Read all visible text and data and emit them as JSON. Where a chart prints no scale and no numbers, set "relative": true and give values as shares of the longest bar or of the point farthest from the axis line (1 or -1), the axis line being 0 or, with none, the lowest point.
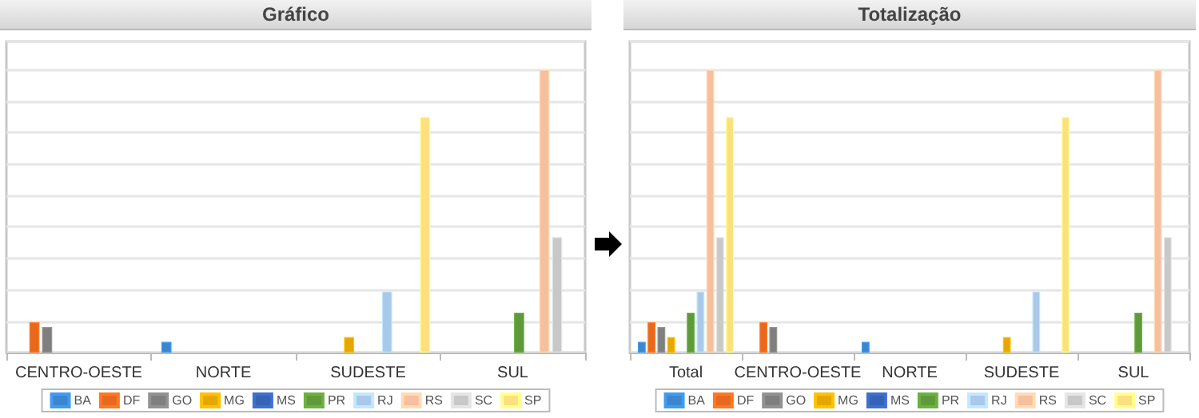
{
  "chart_data": [
    {
      "type": "bar",
      "title": "Gráfico",
      "relative": true,
      "grid": "y",
      "legend": "bottom",
      "categories": [
        "CENTRO-OESTE",
        "NORTE",
        "SUDESTE",
        "SUL"
      ],
      "series": [
        {
          "name": "BA",
          "color": "#3a87d0",
          "values": [
            null,
            0.038,
            null,
            null
          ]
        },
        {
          "name": "DF",
          "color": "#e8691e",
          "values": [
            0.107,
            null,
            null,
            null
          ]
        },
        {
          "name": "GO",
          "color": "#7f7f7f",
          "values": [
            0.09,
            null,
            null,
            null
          ]
        },
        {
          "name": "MG",
          "color": "#e6a800",
          "values": [
            null,
            null,
            0.055,
            null
          ]
        },
        {
          "name": "MS",
          "color": "#3563b5",
          "values": [
            null,
            null,
            null,
            null
          ]
        },
        {
          "name": "PR",
          "color": "#5f9a3a",
          "values": [
            null,
            null,
            null,
            0.141
          ]
        },
        {
          "name": "RJ",
          "color": "#a9c9ea",
          "values": [
            null,
            null,
            0.216,
            null
          ]
        },
        {
          "name": "RS",
          "color": "#f6bf9e",
          "values": [
            null,
            null,
            null,
            1
          ]
        },
        {
          "name": "SC",
          "color": "#c8c8c8",
          "values": [
            null,
            null,
            null,
            0.408
          ]
        },
        {
          "name": "SP",
          "color": "#fde07e",
          "values": [
            null,
            null,
            0.833,
            null
          ]
        }
      ]
    },
    {
      "type": "bar",
      "title": "Totalização",
      "relative": true,
      "grid": "y",
      "legend": "bottom",
      "categories": [
        "Total",
        "CENTRO-OESTE",
        "NORTE",
        "SUDESTE",
        "SUL"
      ],
      "series": [
        {
          "name": "BA",
          "color": "#3a87d0",
          "values": [
            0.038,
            null,
            0.038,
            null,
            null
          ]
        },
        {
          "name": "DF",
          "color": "#e8691e",
          "values": [
            0.107,
            0.107,
            null,
            null,
            null
          ]
        },
        {
          "name": "GO",
          "color": "#7f7f7f",
          "values": [
            0.09,
            0.09,
            null,
            null,
            null
          ]
        },
        {
          "name": "MG",
          "color": "#e6a800",
          "values": [
            0.055,
            null,
            null,
            0.055,
            null
          ]
        },
        {
          "name": "MS",
          "color": "#3563b5",
          "values": [
            null,
            null,
            null,
            null,
            null
          ]
        },
        {
          "name": "PR",
          "color": "#5f9a3a",
          "values": [
            0.141,
            null,
            null,
            null,
            0.141
          ]
        },
        {
          "name": "RJ",
          "color": "#a9c9ea",
          "values": [
            0.216,
            null,
            null,
            0.216,
            null
          ]
        },
        {
          "name": "RS",
          "color": "#f6bf9e",
          "values": [
            1,
            null,
            null,
            null,
            1
          ]
        },
        {
          "name": "SC",
          "color": "#c8c8c8",
          "values": [
            0.408,
            null,
            null,
            null,
            0.408
          ]
        },
        {
          "name": "SP",
          "color": "#fde07e",
          "values": [
            0.833,
            null,
            null,
            0.833,
            null
          ]
        }
      ]
    }
  ]
}
